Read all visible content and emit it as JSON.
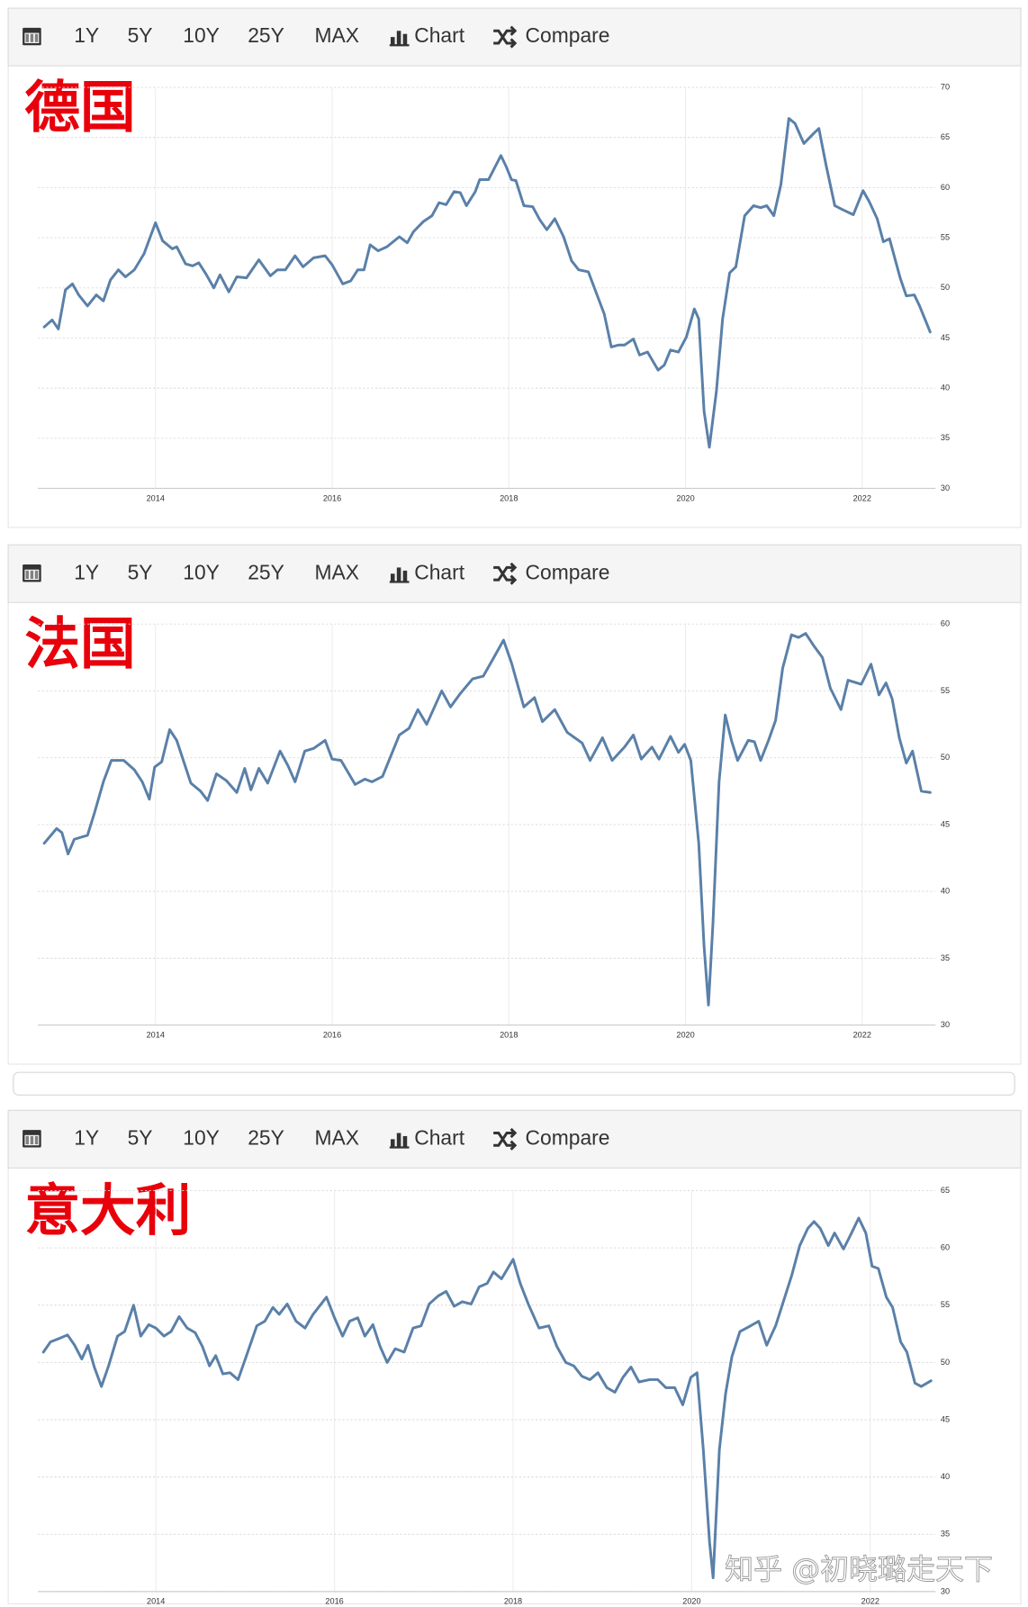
{
  "toolbar": [
    "1Y",
    "5Y",
    "10Y",
    "25Y",
    "MAX",
    "Chart",
    "Compare"
  ],
  "watermark": "知乎 @初晓璐走天下",
  "chart_data": [
    {
      "type": "line",
      "title": "德国",
      "color": "#5a80a8",
      "grid": true,
      "xlim": [
        2012.67,
        2022.83
      ],
      "xticks": [
        2014,
        2016,
        2018,
        2020,
        2022
      ],
      "ylim": [
        30,
        70
      ],
      "yticks": [
        30,
        35,
        40,
        45,
        50,
        55,
        60,
        65,
        70
      ],
      "x": [
        2012.74,
        2012.83,
        2012.9,
        2012.98,
        2013.06,
        2013.13,
        2013.23,
        2013.33,
        2013.41,
        2013.49,
        2013.58,
        2013.66,
        2013.76,
        2013.87,
        2014.0,
        2014.08,
        2014.19,
        2014.24,
        2014.34,
        2014.42,
        2014.49,
        2014.57,
        2014.66,
        2014.73,
        2014.83,
        2014.92,
        2015.03,
        2015.17,
        2015.3,
        2015.38,
        2015.47,
        2015.58,
        2015.67,
        2015.79,
        2015.92,
        2016.0,
        2016.12,
        2016.21,
        2016.29,
        2016.36,
        2016.43,
        2016.52,
        2016.62,
        2016.76,
        2016.85,
        2016.92,
        2017.03,
        2017.13,
        2017.21,
        2017.29,
        2017.38,
        2017.45,
        2017.52,
        2017.62,
        2017.67,
        2017.77,
        2017.91,
        2017.97,
        2018.03,
        2018.08,
        2018.17,
        2018.27,
        2018.35,
        2018.43,
        2018.52,
        2018.62,
        2018.71,
        2018.79,
        2018.9,
        2018.99,
        2019.08,
        2019.16,
        2019.24,
        2019.31,
        2019.41,
        2019.48,
        2019.57,
        2019.69,
        2019.76,
        2019.83,
        2019.92,
        2020.01,
        2020.1,
        2020.15,
        2020.21,
        2020.27,
        2020.35,
        2020.42,
        2020.5,
        2020.57,
        2020.67,
        2020.77,
        2020.85,
        2020.92,
        2021.0,
        2021.08,
        2021.17,
        2021.24,
        2021.34,
        2021.45,
        2021.51,
        2021.59,
        2021.69,
        2021.78,
        2021.9,
        2022.01,
        2022.08,
        2022.17,
        2022.24,
        2022.31,
        2022.43,
        2022.5,
        2022.59,
        2022.65,
        2022.77
      ],
      "values": [
        46.1,
        46.8,
        45.9,
        49.8,
        50.4,
        49.3,
        48.2,
        49.3,
        48.7,
        50.8,
        51.8,
        51.1,
        51.8,
        53.4,
        56.5,
        54.7,
        53.9,
        54.1,
        52.4,
        52.2,
        52.5,
        51.4,
        50.0,
        51.3,
        49.6,
        51.1,
        51.0,
        52.8,
        51.2,
        51.8,
        51.8,
        53.2,
        52.1,
        53.0,
        53.2,
        52.3,
        50.4,
        50.7,
        51.8,
        51.8,
        54.3,
        53.7,
        54.1,
        55.1,
        54.5,
        55.6,
        56.6,
        57.2,
        58.5,
        58.3,
        59.6,
        59.5,
        58.2,
        59.6,
        60.8,
        60.8,
        63.2,
        62.1,
        60.8,
        60.7,
        58.2,
        58.1,
        56.8,
        55.8,
        56.9,
        55.1,
        52.7,
        51.8,
        51.6,
        49.5,
        47.4,
        44.1,
        44.3,
        44.3,
        44.9,
        43.3,
        43.6,
        41.8,
        42.3,
        43.8,
        43.6,
        45.1,
        47.9,
        46.9,
        37.7,
        34.1,
        39.7,
        46.9,
        51.5,
        52.1,
        57.2,
        58.2,
        58.0,
        58.2,
        57.2,
        60.3,
        66.9,
        66.4,
        64.4,
        65.4,
        65.9,
        62.3,
        58.2,
        57.8,
        57.3,
        59.7,
        58.6,
        56.9,
        54.6,
        54.9,
        51.0,
        49.2,
        49.3,
        48.2,
        45.6
      ]
    },
    {
      "type": "line",
      "title": "法国",
      "color": "#5a80a8",
      "grid": true,
      "xlim": [
        2012.67,
        2022.83
      ],
      "xticks": [
        2014,
        2016,
        2018,
        2020,
        2022
      ],
      "ylim": [
        30,
        60
      ],
      "yticks": [
        30,
        35,
        40,
        45,
        50,
        55,
        60
      ],
      "x": [
        2012.74,
        2012.88,
        2012.94,
        2013.01,
        2013.08,
        2013.23,
        2013.31,
        2013.41,
        2013.5,
        2013.64,
        2013.76,
        2013.85,
        2013.93,
        2013.99,
        2014.07,
        2014.16,
        2014.24,
        2014.4,
        2014.51,
        2014.59,
        2014.69,
        2014.8,
        2014.92,
        2015.01,
        2015.08,
        2015.17,
        2015.27,
        2015.41,
        2015.5,
        2015.58,
        2015.69,
        2015.79,
        2015.92,
        2016.0,
        2016.1,
        2016.26,
        2016.37,
        2016.45,
        2016.57,
        2016.76,
        2016.87,
        2016.97,
        2017.07,
        2017.24,
        2017.34,
        2017.45,
        2017.59,
        2017.71,
        2017.83,
        2017.94,
        2018.03,
        2018.17,
        2018.29,
        2018.38,
        2018.52,
        2018.66,
        2018.83,
        2018.92,
        2019.06,
        2019.17,
        2019.31,
        2019.41,
        2019.5,
        2019.62,
        2019.7,
        2019.83,
        2019.92,
        2019.99,
        2020.06,
        2020.15,
        2020.21,
        2020.26,
        2020.31,
        2020.38,
        2020.45,
        2020.52,
        2020.59,
        2020.71,
        2020.78,
        2020.85,
        2020.94,
        2021.02,
        2021.1,
        2021.2,
        2021.28,
        2021.36,
        2021.45,
        2021.55,
        2021.64,
        2021.76,
        2021.84,
        2021.99,
        2022.1,
        2022.19,
        2022.27,
        2022.34,
        2022.42,
        2022.5,
        2022.57,
        2022.67,
        2022.77
      ],
      "values": [
        43.6,
        44.7,
        44.4,
        42.8,
        43.9,
        44.2,
        45.9,
        48.2,
        49.8,
        49.8,
        49.1,
        48.2,
        46.9,
        49.3,
        49.7,
        52.1,
        51.3,
        48.1,
        47.5,
        46.8,
        48.8,
        48.3,
        47.4,
        49.2,
        47.6,
        49.2,
        48.1,
        50.5,
        49.4,
        48.2,
        50.5,
        50.7,
        51.3,
        49.9,
        49.8,
        48.0,
        48.4,
        48.2,
        48.6,
        51.7,
        52.2,
        53.6,
        52.5,
        55.0,
        53.8,
        54.8,
        55.9,
        56.1,
        57.5,
        58.8,
        57.1,
        53.8,
        54.5,
        52.7,
        53.6,
        51.9,
        51.1,
        49.8,
        51.5,
        49.8,
        50.8,
        51.7,
        49.9,
        50.8,
        49.9,
        51.6,
        50.4,
        51.0,
        49.8,
        43.6,
        35.9,
        31.5,
        37.5,
        48.2,
        53.2,
        51.3,
        49.8,
        51.3,
        51.2,
        49.8,
        51.3,
        52.8,
        56.7,
        59.2,
        59.0,
        59.3,
        58.4,
        57.5,
        55.2,
        53.6,
        55.8,
        55.5,
        57.0,
        54.7,
        55.6,
        54.4,
        51.5,
        49.6,
        50.5,
        47.5,
        47.4
      ]
    },
    {
      "type": "line",
      "title": "意大利",
      "color": "#5a80a8",
      "grid": true,
      "xlim": [
        2012.68,
        2022.73
      ],
      "xticks": [
        2014,
        2016,
        2018,
        2020,
        2022
      ],
      "ylim": [
        30,
        65
      ],
      "yticks": [
        30,
        35,
        40,
        45,
        50,
        55,
        60,
        65
      ],
      "x": [
        2012.74,
        2012.82,
        2012.92,
        2013.01,
        2013.09,
        2013.17,
        2013.24,
        2013.31,
        2013.39,
        2013.47,
        2013.57,
        2013.65,
        2013.75,
        2013.83,
        2013.92,
        2014.0,
        2014.09,
        2014.17,
        2014.26,
        2014.35,
        2014.44,
        2014.52,
        2014.6,
        2014.67,
        2014.75,
        2014.83,
        2014.92,
        2015.01,
        2015.13,
        2015.22,
        2015.31,
        2015.38,
        2015.47,
        2015.57,
        2015.67,
        2015.76,
        2015.91,
        2016.0,
        2016.09,
        2016.17,
        2016.26,
        2016.34,
        2016.43,
        2016.51,
        2016.59,
        2016.68,
        2016.78,
        2016.88,
        2016.97,
        2017.06,
        2017.16,
        2017.25,
        2017.34,
        2017.43,
        2017.53,
        2017.62,
        2017.71,
        2017.78,
        2017.87,
        2018.0,
        2018.08,
        2018.17,
        2018.29,
        2018.4,
        2018.49,
        2018.59,
        2018.68,
        2018.77,
        2018.86,
        2018.95,
        2019.05,
        2019.14,
        2019.23,
        2019.32,
        2019.41,
        2019.53,
        2019.62,
        2019.71,
        2019.81,
        2019.9,
        2019.99,
        2020.06,
        2020.13,
        2020.2,
        2020.24,
        2020.31,
        2020.38,
        2020.45,
        2020.54,
        2020.66,
        2020.75,
        2020.84,
        2020.94,
        2021.03,
        2021.12,
        2021.21,
        2021.3,
        2021.37,
        2021.44,
        2021.53,
        2021.6,
        2021.7,
        2021.79,
        2021.87,
        2021.95,
        2022.02,
        2022.09,
        2022.18,
        2022.25,
        2022.34,
        2022.41,
        2022.5,
        2022.57,
        2022.68
      ],
      "values": [
        50.9,
        51.8,
        52.1,
        52.4,
        51.5,
        50.3,
        51.5,
        49.6,
        47.9,
        49.7,
        52.3,
        52.7,
        55.0,
        52.3,
        53.3,
        53.0,
        52.3,
        52.7,
        54.0,
        53.0,
        52.6,
        51.4,
        49.7,
        50.6,
        49.0,
        49.1,
        48.5,
        50.5,
        53.2,
        53.6,
        54.8,
        54.2,
        55.1,
        53.6,
        53.0,
        54.2,
        55.7,
        53.9,
        52.3,
        53.6,
        53.9,
        52.3,
        53.3,
        51.4,
        50.0,
        51.2,
        50.9,
        53.0,
        53.2,
        55.1,
        55.8,
        56.2,
        54.9,
        55.3,
        55.1,
        56.6,
        56.9,
        57.9,
        57.3,
        59.0,
        56.9,
        55.1,
        53.0,
        53.2,
        51.4,
        50.0,
        49.7,
        48.8,
        48.5,
        49.1,
        47.8,
        47.4,
        48.7,
        49.6,
        48.3,
        48.5,
        48.5,
        47.8,
        47.8,
        46.3,
        48.7,
        49.1,
        42.4,
        34.3,
        31.2,
        42.4,
        47.3,
        50.5,
        52.7,
        53.2,
        53.6,
        51.5,
        53.2,
        55.4,
        57.6,
        60.2,
        61.7,
        62.3,
        61.7,
        60.2,
        61.3,
        59.9,
        61.3,
        62.6,
        61.3,
        58.4,
        58.2,
        55.7,
        54.8,
        51.8,
        50.9,
        48.2,
        47.9,
        48.4
      ]
    }
  ]
}
